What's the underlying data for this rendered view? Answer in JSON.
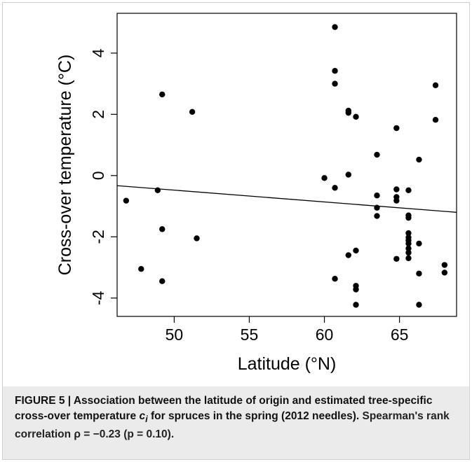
{
  "chart_data": {
    "type": "scatter",
    "xlabel": "Latitude  (°N)",
    "ylabel": "Cross-over temperature  (°C)",
    "xlim": [
      46.2,
      68.8
    ],
    "ylim": [
      -4.6,
      5.3
    ],
    "xticks": [
      50,
      55,
      60,
      65
    ],
    "yticks": [
      4,
      2,
      0,
      -2,
      -4
    ],
    "ytick_labels": [
      "4",
      "2",
      "0",
      "-2",
      "-4"
    ],
    "grid": false,
    "points": [
      {
        "x": 46.8,
        "y": -0.82
      },
      {
        "x": 47.8,
        "y": -3.05
      },
      {
        "x": 48.9,
        "y": -0.48
      },
      {
        "x": 49.2,
        "y": 2.65
      },
      {
        "x": 49.2,
        "y": -1.75
      },
      {
        "x": 49.2,
        "y": -3.45
      },
      {
        "x": 51.2,
        "y": 2.08
      },
      {
        "x": 51.5,
        "y": -2.05
      },
      {
        "x": 60.0,
        "y": -0.08
      },
      {
        "x": 60.7,
        "y": 4.85
      },
      {
        "x": 60.7,
        "y": 3.42
      },
      {
        "x": 60.7,
        "y": 3.0
      },
      {
        "x": 60.7,
        "y": -0.4
      },
      {
        "x": 60.7,
        "y": -3.37
      },
      {
        "x": 61.6,
        "y": 2.12
      },
      {
        "x": 61.6,
        "y": 2.05
      },
      {
        "x": 61.6,
        "y": 0.03
      },
      {
        "x": 61.6,
        "y": -2.6
      },
      {
        "x": 62.1,
        "y": 1.92
      },
      {
        "x": 62.1,
        "y": -2.45
      },
      {
        "x": 62.1,
        "y": -3.6
      },
      {
        "x": 62.1,
        "y": -3.72
      },
      {
        "x": 62.1,
        "y": -4.22
      },
      {
        "x": 63.5,
        "y": 0.68
      },
      {
        "x": 63.5,
        "y": -0.65
      },
      {
        "x": 63.5,
        "y": -1.05
      },
      {
        "x": 63.5,
        "y": -1.32
      },
      {
        "x": 64.8,
        "y": 1.55
      },
      {
        "x": 64.8,
        "y": -0.45
      },
      {
        "x": 64.8,
        "y": -0.7
      },
      {
        "x": 64.8,
        "y": -0.82
      },
      {
        "x": 64.8,
        "y": -2.72
      },
      {
        "x": 65.6,
        "y": -0.48
      },
      {
        "x": 65.6,
        "y": -1.3
      },
      {
        "x": 65.6,
        "y": -1.38
      },
      {
        "x": 65.6,
        "y": -1.88
      },
      {
        "x": 65.6,
        "y": -2.02
      },
      {
        "x": 65.6,
        "y": -2.12
      },
      {
        "x": 65.6,
        "y": -2.22
      },
      {
        "x": 65.6,
        "y": -2.38
      },
      {
        "x": 65.6,
        "y": -2.52
      },
      {
        "x": 65.6,
        "y": -2.7
      },
      {
        "x": 66.3,
        "y": 0.52
      },
      {
        "x": 66.3,
        "y": -2.22
      },
      {
        "x": 66.3,
        "y": -3.2
      },
      {
        "x": 66.3,
        "y": -4.22
      },
      {
        "x": 67.4,
        "y": 2.95
      },
      {
        "x": 67.4,
        "y": 1.82
      },
      {
        "x": 68.0,
        "y": -2.92
      },
      {
        "x": 68.0,
        "y": -3.17
      }
    ],
    "regression_line": {
      "x": [
        46.2,
        68.8
      ],
      "y": [
        -0.33,
        -1.2
      ]
    }
  },
  "caption": {
    "title_bold": "FIGURE 5 | Association between the latitude of origin and estimated tree-specific cross-over temperature",
    "symbol_base": "c",
    "symbol_sub": "i",
    "title_bold_tail": "for spruces in the spring (2012 needles).",
    "rest": "Spearman's rank correlation ρ = −0.23 (p = 0.10)."
  }
}
